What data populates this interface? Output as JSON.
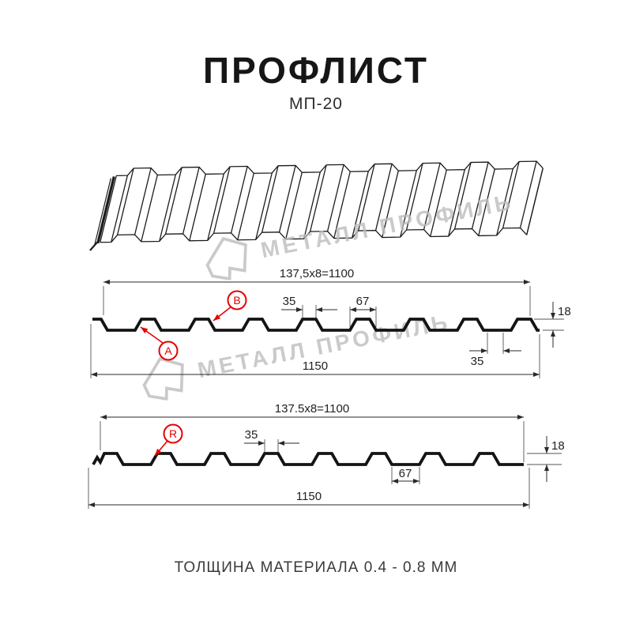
{
  "header": {
    "title": "ПРОФЛИСТ",
    "subtitle": "МП-20"
  },
  "watermark": {
    "text": "МЕТАЛЛ ПРОФИЛЬ"
  },
  "footer": {
    "text": "ТОЛЩИНА МАТЕРИАЛА 0.4 - 0.8 ММ"
  },
  "colors": {
    "accent_red": "#e60101",
    "line_black": "#141414",
    "watermark_gray": "#bdbdbd"
  },
  "section_top": {
    "dim_pitch_formula": "137,5x8=1100",
    "dim_crest_top": "35",
    "dim_crest_base": "67",
    "dim_height": "18",
    "dim_bottom_flat": "35",
    "dim_total_width": "1150",
    "label_a": "A",
    "label_b": "B"
  },
  "section_bottom": {
    "dim_pitch_formula": "137.5x8=1100",
    "dim_crest_top": "35",
    "dim_valley": "67",
    "dim_height": "18",
    "dim_total_width": "1150",
    "label_r": "R"
  }
}
